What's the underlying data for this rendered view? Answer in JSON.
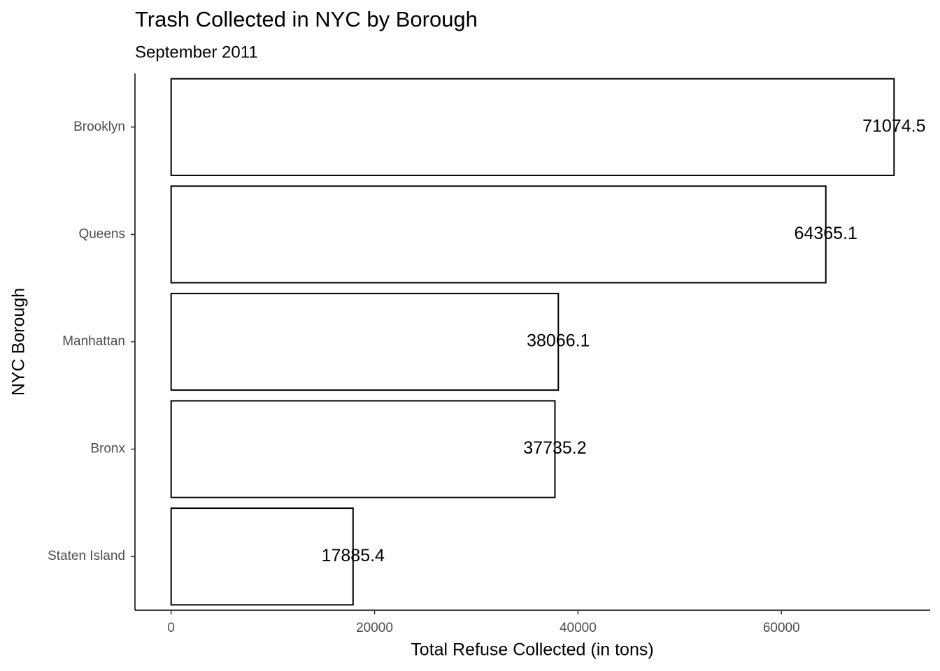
{
  "chart_data": {
    "type": "bar",
    "orientation": "horizontal",
    "title": "Trash Collected in NYC by Borough",
    "subtitle": "September 2011",
    "x_label": "Total Refuse Collected (in tons)",
    "y_label": "NYC Borough",
    "categories": [
      "Brooklyn",
      "Queens",
      "Manhattan",
      "Bronx",
      "Staten Island"
    ],
    "values": [
      71074.5,
      64365.1,
      38066.1,
      37735.2,
      17885.4
    ],
    "color": "#ffffff",
    "edge_color": "#000000",
    "xlim": [
      -3553.7,
      74628.2
    ],
    "xticks": [
      0,
      20000,
      40000,
      60000
    ],
    "grid": false
  }
}
